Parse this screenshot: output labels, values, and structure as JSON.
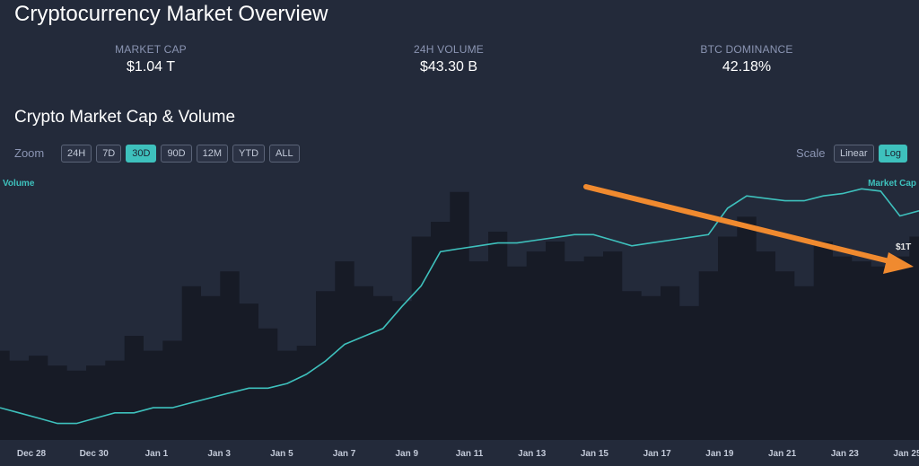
{
  "page": {
    "title": "Cryptocurrency Market Overview"
  },
  "stats": [
    {
      "label": "MARKET CAP",
      "value": "$1.04 T"
    },
    {
      "label": "24H VOLUME",
      "value": "$43.30 B"
    },
    {
      "label": "BTC DOMINANCE",
      "value": "42.18%"
    }
  ],
  "chart_section": {
    "title": "Crypto Market Cap & Volume",
    "zoom_label": "Zoom",
    "zoom_options": [
      "24H",
      "7D",
      "30D",
      "90D",
      "12M",
      "YTD",
      "ALL"
    ],
    "zoom_active": "30D",
    "scale_label": "Scale",
    "scale_options": [
      "Linear",
      "Log"
    ],
    "scale_active": "Log"
  },
  "colors": {
    "background": "#232a3a",
    "accent": "#3ec1bd",
    "volume_fill": "#171b26",
    "arrow": "#f08a2f"
  },
  "chart_data": {
    "type": "area",
    "x_ticks": [
      "Dec 28",
      "Dec 30",
      "Jan 1",
      "Jan 3",
      "Jan 5",
      "Jan 7",
      "Jan 9",
      "Jan 11",
      "Jan 13",
      "Jan 15",
      "Jan 17",
      "Jan 19",
      "Jan 21",
      "Jan 23",
      "Jan 25"
    ],
    "y_scale": "log",
    "annotations": [
      "$1T"
    ],
    "series": [
      {
        "name": "Market Cap",
        "type": "line",
        "values": [
          0.56,
          0.55,
          0.54,
          0.53,
          0.53,
          0.54,
          0.55,
          0.55,
          0.56,
          0.56,
          0.57,
          0.58,
          0.59,
          0.6,
          0.6,
          0.61,
          0.63,
          0.66,
          0.7,
          0.72,
          0.74,
          0.8,
          0.86,
          0.97,
          0.98,
          0.99,
          1.0,
          1.0,
          1.01,
          1.02,
          1.03,
          1.03,
          1.01,
          0.99,
          1.0,
          1.01,
          1.02,
          1.03,
          1.13,
          1.18,
          1.17,
          1.16,
          1.16,
          1.18,
          1.19,
          1.21,
          1.2,
          1.1,
          1.12
        ]
      },
      {
        "name": "Volume",
        "type": "area",
        "values": [
          36,
          32,
          34,
          30,
          28,
          30,
          32,
          42,
          36,
          40,
          62,
          58,
          68,
          55,
          45,
          36,
          38,
          60,
          72,
          62,
          58,
          56,
          82,
          88,
          100,
          72,
          84,
          70,
          76,
          80,
          72,
          74,
          76,
          60,
          58,
          62,
          54,
          68,
          82,
          90,
          76,
          68,
          62,
          80,
          74,
          72,
          70,
          74,
          82
        ]
      }
    ]
  }
}
